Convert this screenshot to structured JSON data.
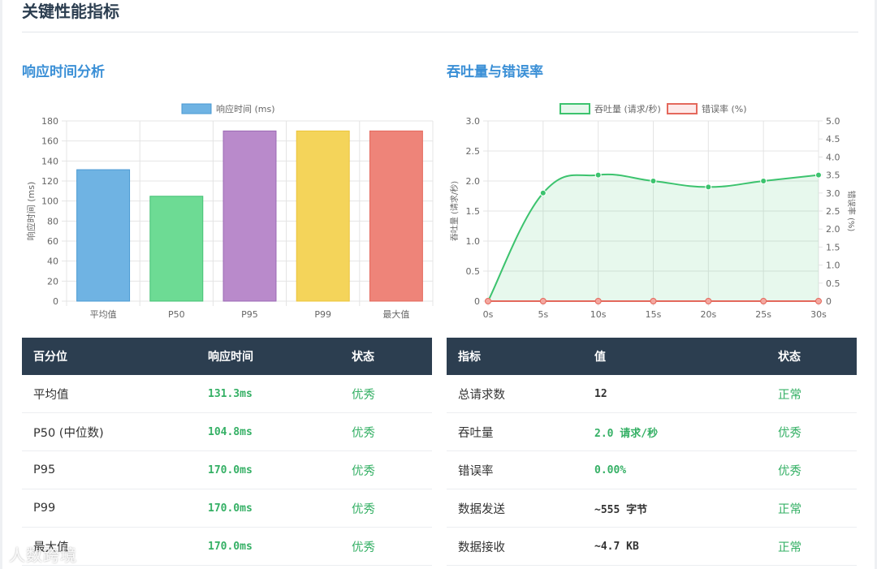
{
  "page": {
    "title": "关键性能指标",
    "watermark": "人数跨境"
  },
  "sections": {
    "left_title": "响应时间分析",
    "right_title": "吞吐量与错误率"
  },
  "colors": {
    "bars": [
      "#6fb3e3",
      "#6ddb94",
      "#b98acb",
      "#f4d45a",
      "#ee8479"
    ],
    "bar_strokes": [
      "#4a9ad3",
      "#44c174",
      "#9b6ab5",
      "#ecc43a",
      "#e4685c"
    ],
    "throughput": "#3cc36e",
    "error": "#e4685c"
  },
  "chart_data": [
    {
      "type": "bar",
      "legend": [
        "响应时间 (ms)"
      ],
      "categories": [
        "平均值",
        "P50",
        "P95",
        "P99",
        "最大值"
      ],
      "values": [
        131.3,
        104.8,
        170.0,
        170.0,
        170.0
      ],
      "ylabel": "响应时间 (ms)",
      "ylim": [
        0,
        180
      ],
      "yticks": [
        "0",
        "20",
        "40",
        "60",
        "80",
        "100",
        "120",
        "140",
        "160",
        "180"
      ],
      "grid": true,
      "legend_position": "top"
    },
    {
      "type": "line",
      "legend": [
        "吞吐量 (请求/秒)",
        "错误率 (%)"
      ],
      "x": [
        "0s",
        "5s",
        "10s",
        "15s",
        "20s",
        "25s",
        "30s"
      ],
      "series": [
        {
          "name": "吞吐量 (请求/秒)",
          "values": [
            0,
            1.8,
            2.1,
            2.0,
            1.9,
            2.0,
            2.1
          ],
          "axis": "left",
          "fill": true
        },
        {
          "name": "错误率 (%)",
          "values": [
            0,
            0,
            0,
            0,
            0,
            0,
            0
          ],
          "axis": "right",
          "fill": true
        }
      ],
      "ylabel_left": "吞吐量 (请求/秒)",
      "ylabel_right": "错误率 (%)",
      "ylim_left": [
        0,
        3.0
      ],
      "ylim_right": [
        0,
        5.0
      ],
      "yticks_left": [
        "0",
        "0.5",
        "1.0",
        "1.5",
        "2.0",
        "2.5",
        "3.0"
      ],
      "yticks_right": [
        "0",
        "0.5",
        "1.0",
        "1.5",
        "2.0",
        "2.5",
        "3.0",
        "3.5",
        "4.0",
        "4.5",
        "5.0"
      ],
      "grid": true,
      "legend_position": "top"
    }
  ],
  "left_table": {
    "headers": [
      "百分位",
      "响应时间",
      "状态"
    ],
    "rows": [
      {
        "label": "平均值",
        "value": "131.3ms",
        "status": "优秀"
      },
      {
        "label": "P50 (中位数)",
        "value": "104.8ms",
        "status": "优秀"
      },
      {
        "label": "P95",
        "value": "170.0ms",
        "status": "优秀"
      },
      {
        "label": "P99",
        "value": "170.0ms",
        "status": "优秀"
      },
      {
        "label": "最大值",
        "value": "170.0ms",
        "status": "优秀"
      }
    ]
  },
  "right_table": {
    "headers": [
      "指标",
      "值",
      "状态"
    ],
    "rows": [
      {
        "label": "总请求数",
        "value": "12",
        "status": "正常",
        "value_color": "dark"
      },
      {
        "label": "吞吐量",
        "value": "2.0 请求/秒",
        "status": "优秀",
        "value_color": "green"
      },
      {
        "label": "错误率",
        "value": "0.00%",
        "status": "优秀",
        "value_color": "green"
      },
      {
        "label": "数据发送",
        "value": "~555 字节",
        "status": "正常",
        "value_color": "dark"
      },
      {
        "label": "数据接收",
        "value": "~4.7 KB",
        "status": "正常",
        "value_color": "dark"
      }
    ]
  }
}
